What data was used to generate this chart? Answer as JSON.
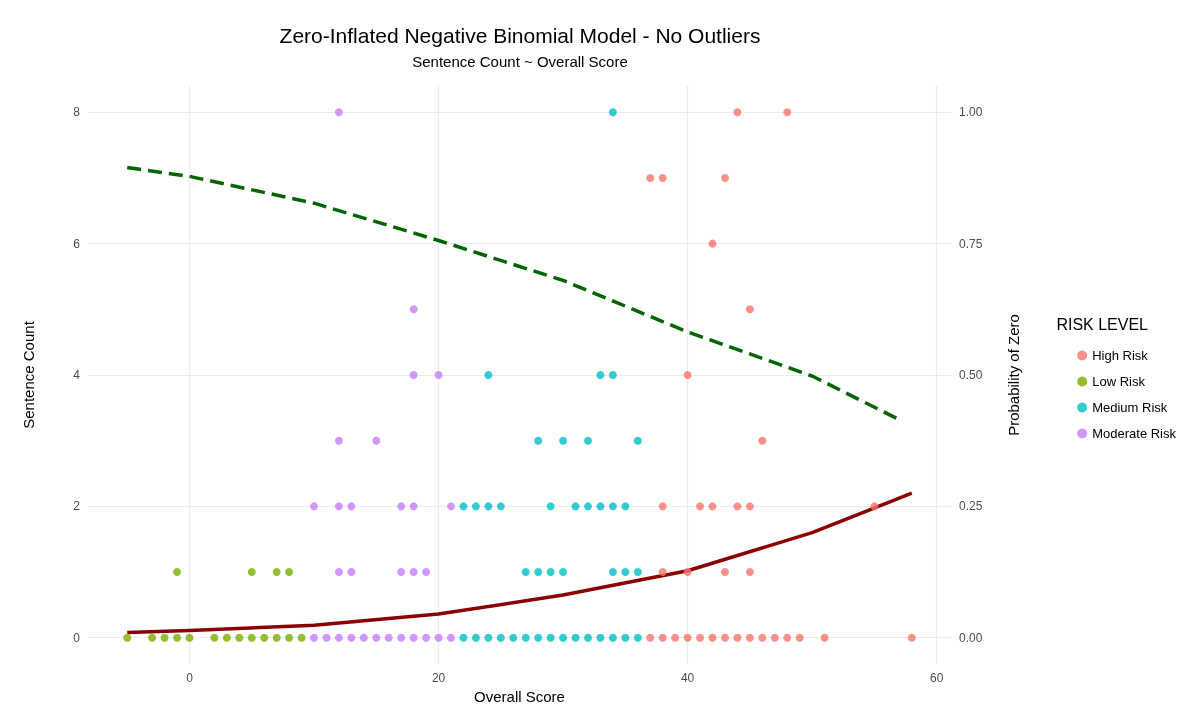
{
  "chart_data": {
    "type": "scatter",
    "title": "Zero-Inflated Negative Binomial Model - No Outliers",
    "subtitle": "Sentence Count ~ Overall Score",
    "xlabel": "Overall Score",
    "ylabel": "Sentence Count",
    "y2label": "Probability of Zero",
    "legend_title": "RISK LEVEL",
    "legend": "right",
    "grid": true,
    "marker": "circle",
    "xlim": [
      -8.15,
      61.15
    ],
    "xticks": [
      0,
      20,
      40,
      60
    ],
    "ylim": [
      -0.4,
      8.4
    ],
    "yticks": [
      0,
      2,
      4,
      6,
      8
    ],
    "y2lim": [
      -0.05,
      1.05
    ],
    "y2ticks": [
      {
        "value": 0,
        "label": "0.00"
      },
      {
        "value": 0.25,
        "label": "0.25"
      },
      {
        "value": 0.5,
        "label": "0.50"
      },
      {
        "value": 0.75,
        "label": "0.75"
      },
      {
        "value": 1,
        "label": "1.00"
      }
    ],
    "series": [
      {
        "name": "High Risk",
        "color": "#f8766d",
        "x": [
          37,
          38,
          39,
          40,
          41,
          42,
          43,
          44,
          45,
          46,
          47,
          48,
          49,
          51,
          58,
          38,
          40,
          43,
          45,
          38,
          41,
          42,
          44,
          45,
          55,
          46,
          40,
          45,
          42,
          37,
          38,
          43,
          44,
          48
        ],
        "values": [
          0,
          0,
          0,
          0,
          0,
          0,
          0,
          0,
          0,
          0,
          0,
          0,
          0,
          0,
          0,
          1,
          1,
          1,
          1,
          2,
          2,
          2,
          2,
          2,
          2,
          3,
          4,
          5,
          6,
          7,
          7,
          7,
          8,
          8
        ]
      },
      {
        "name": "Low Risk",
        "color": "#7cae00",
        "x": [
          -5,
          -3,
          -2,
          -1,
          0,
          2,
          3,
          4,
          5,
          6,
          7,
          8,
          9,
          -1,
          5,
          7,
          8
        ],
        "values": [
          0,
          0,
          0,
          0,
          0,
          0,
          0,
          0,
          0,
          0,
          0,
          0,
          0,
          1,
          1,
          1,
          1
        ]
      },
      {
        "name": "Medium Risk",
        "color": "#00bfc4",
        "x": [
          22,
          23,
          24,
          25,
          26,
          27,
          28,
          29,
          30,
          31,
          32,
          33,
          34,
          35,
          36,
          27,
          28,
          29,
          30,
          34,
          35,
          36,
          22,
          23,
          24,
          25,
          29,
          31,
          32,
          33,
          34,
          35,
          28,
          30,
          32,
          36,
          24,
          33,
          34,
          34
        ],
        "values": [
          0,
          0,
          0,
          0,
          0,
          0,
          0,
          0,
          0,
          0,
          0,
          0,
          0,
          0,
          0,
          1,
          1,
          1,
          1,
          1,
          1,
          1,
          2,
          2,
          2,
          2,
          2,
          2,
          2,
          2,
          2,
          2,
          3,
          3,
          3,
          3,
          4,
          4,
          4,
          8
        ]
      },
      {
        "name": "Moderate Risk",
        "color": "#c77cff",
        "x": [
          10,
          11,
          12,
          13,
          14,
          15,
          16,
          17,
          18,
          19,
          20,
          21,
          12,
          13,
          17,
          18,
          19,
          10,
          12,
          13,
          17,
          18,
          21,
          12,
          15,
          18,
          20,
          18,
          12
        ],
        "values": [
          0,
          0,
          0,
          0,
          0,
          0,
          0,
          0,
          0,
          0,
          0,
          0,
          1,
          1,
          1,
          1,
          1,
          2,
          2,
          2,
          2,
          2,
          2,
          3,
          3,
          4,
          4,
          5,
          8
        ]
      },
      {
        "type": "line",
        "color": "#8b0000",
        "marker": "none",
        "line_style": "solid",
        "x": [
          -5,
          0,
          10,
          20,
          30,
          40,
          50,
          58
        ],
        "values": [
          0.08,
          0.11,
          0.19,
          0.36,
          0.65,
          1.02,
          1.6,
          2.2
        ]
      },
      {
        "type": "line",
        "axis": "y2",
        "color": "#006400",
        "marker": "none",
        "line_style": "dashed",
        "x": [
          -5,
          0,
          10,
          20,
          30,
          40,
          50,
          57
        ],
        "values": [
          0.895,
          0.878,
          0.827,
          0.756,
          0.68,
          0.582,
          0.498,
          0.415
        ]
      }
    ]
  }
}
